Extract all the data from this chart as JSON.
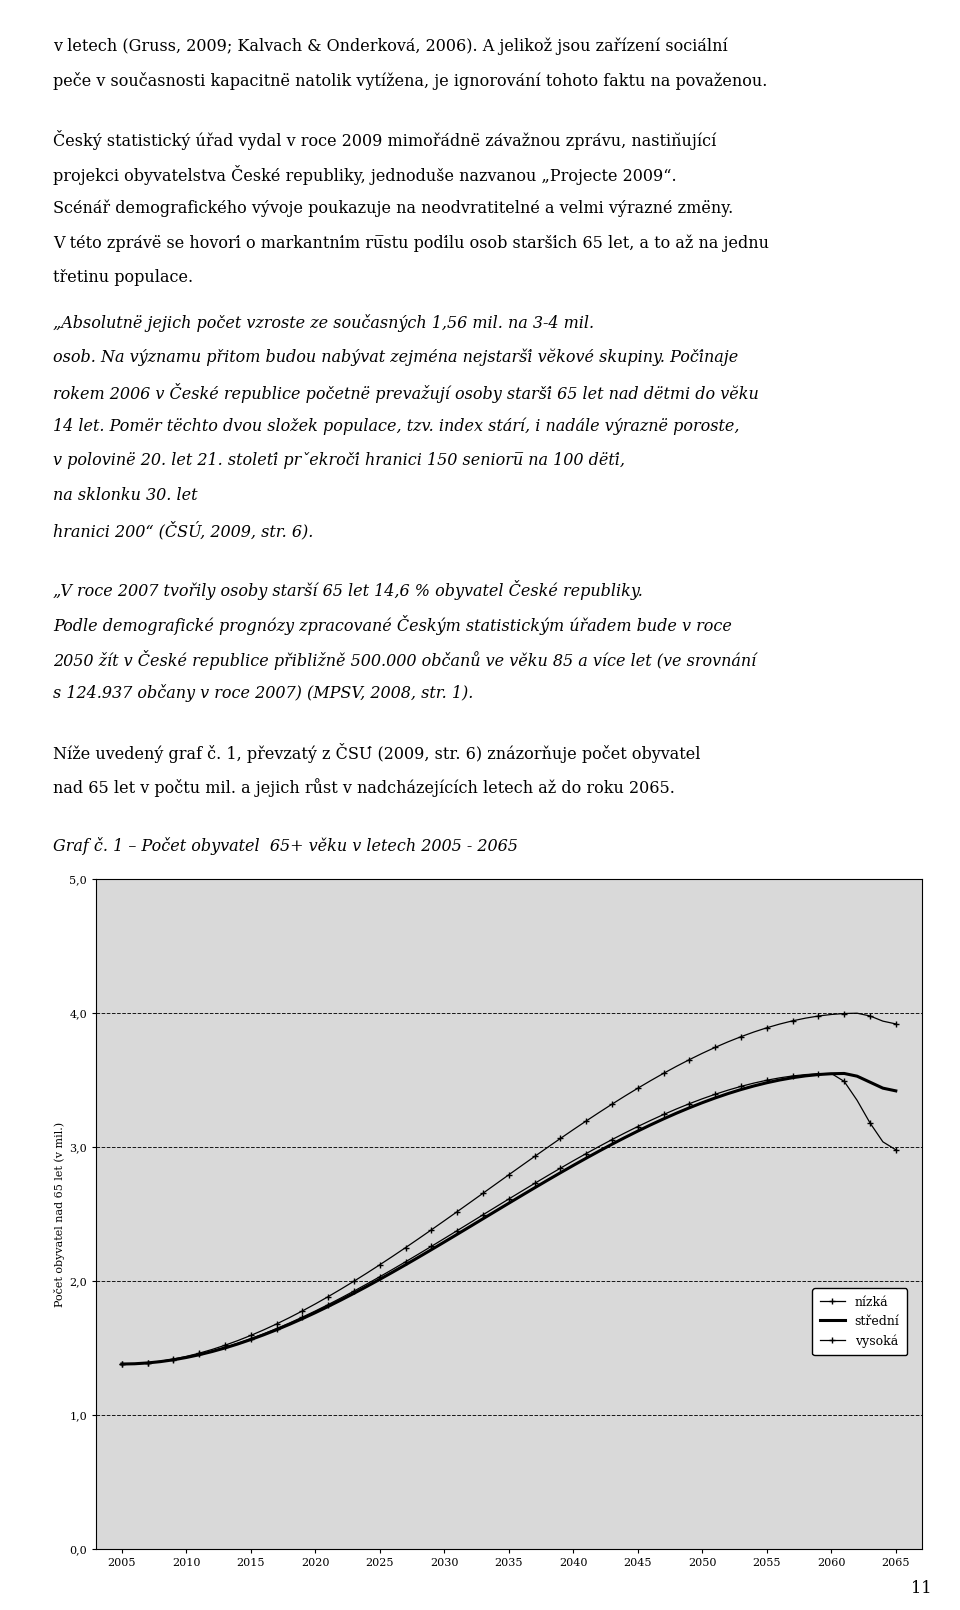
{
  "chart_bgcolor": "#d9d9d9",
  "ylabel": "Počet obyvatel nad 65 let (v mil.)",
  "ytick_labels": [
    "0,0",
    "1,0",
    "2,0",
    "3,0",
    "4,0",
    "5,0"
  ],
  "yticks": [
    0.0,
    1.0,
    2.0,
    3.0,
    4.0,
    5.0
  ],
  "xticks": [
    2005,
    2010,
    2015,
    2020,
    2025,
    2030,
    2035,
    2040,
    2045,
    2050,
    2055,
    2060,
    2065
  ],
  "ylim": [
    0.0,
    5.0
  ],
  "xlim": [
    2003,
    2067
  ],
  "legend_labels": [
    "nízká",
    "střední",
    "vysoká"
  ],
  "page_number": "11",
  "caption": "Graf č. 1 – Počet obyvatel  65+ věku v letech 2005 - 2065",
  "p1": [
    "v letech (Gruss, 2009; Kalvach & Onderková, 2006). A jelikož jsou zařízení sociální",
    "peče v současnosti kapacitnë natolik vytížena, je ignorování tohoto faktu na považenou."
  ],
  "p2": [
    "Český statistický úřad vydal v roce 2009 mimořádnë závažnou zprávu, nastin̆ující",
    "projekci obyvatelstva České republiky, jednoduše nazvanou „Projecte 2009“.",
    "Scénář demografického vývoje poukazuje na neodvratitelné a velmi výrazné zmëny.",
    "V této zprávë se hovorí o markantním ru̅stu podílu osob starších 65 let, a to až na jednu",
    "třetinu populace."
  ],
  "p3_italic": [
    "„Absolutnë jejich počet vzroste ze současných 1,56 mil. na 3-4 mil.",
    "osob. Na významu přitom budou nabývat zejména nejstarší vĕkové skupiny. Počínaje",
    "rokem 2006 v České republice početnë prevažují osoby starší 65 let nad dëtmi do vĕku",
    "14 let. Pomër tëchto dvou složek populace, tzv. index stárí, i nadále výraznë poroste,",
    "v polovinë 20. let 21. století prˇekročí hranici 150 senioru̅ na 100 dëtí,",
    "na sklonku 30. let",
    "hranici 200“ (ČSÚ, 2009, str. 6)."
  ],
  "p4_italic": [
    "„V roce 2007 tvořily osoby starší 65 let 14,6 % obyvatel České republiky.",
    "Podle demografické prognózy zpracované Českým statistickým úřadem bude v roce",
    "2050 žít v České republice přibližně 500.000 občanů ve věku 85 a více let (ve srovnání",
    "s 124.937 občany v roce 2007) (MPSV, 2008, str. 1)."
  ],
  "p5": [
    "Níže uvedený graf č. 1, převzatý z ČSÚ (2009, str. 6) znázorňuje počet obyvatel",
    "nad 65 let v počtu mil. a jejich růst v nadcházejících letech až do roku 2065."
  ]
}
